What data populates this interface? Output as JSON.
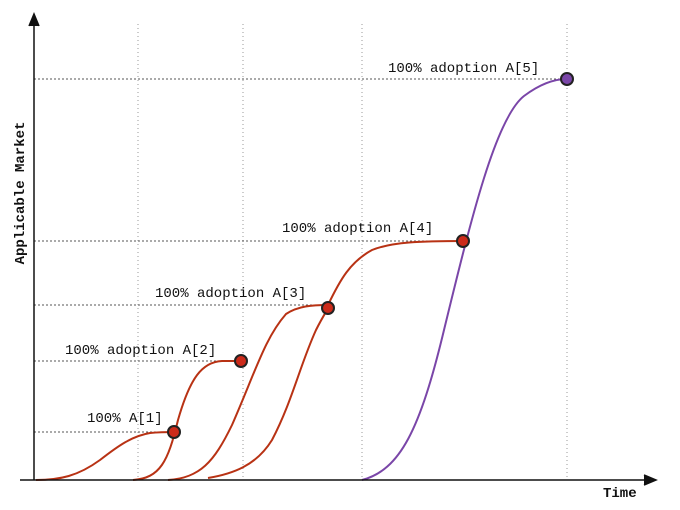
{
  "diagram": {
    "axes": {
      "y_title": "Applicable Market",
      "x_title": "Time"
    },
    "labels": [
      "100% A[1]",
      "100% adoption A[2]",
      "100% adoption A[3]",
      "100% adoption A[4]",
      "100% adoption A[5]"
    ],
    "colors": {
      "adoption_curve": "#b83214",
      "adoption_point": "#cc2a1a",
      "final_curve": "#7a46a8",
      "final_point": "#7a46a8",
      "axis": "#111111",
      "guide": "#777777"
    }
  }
}
